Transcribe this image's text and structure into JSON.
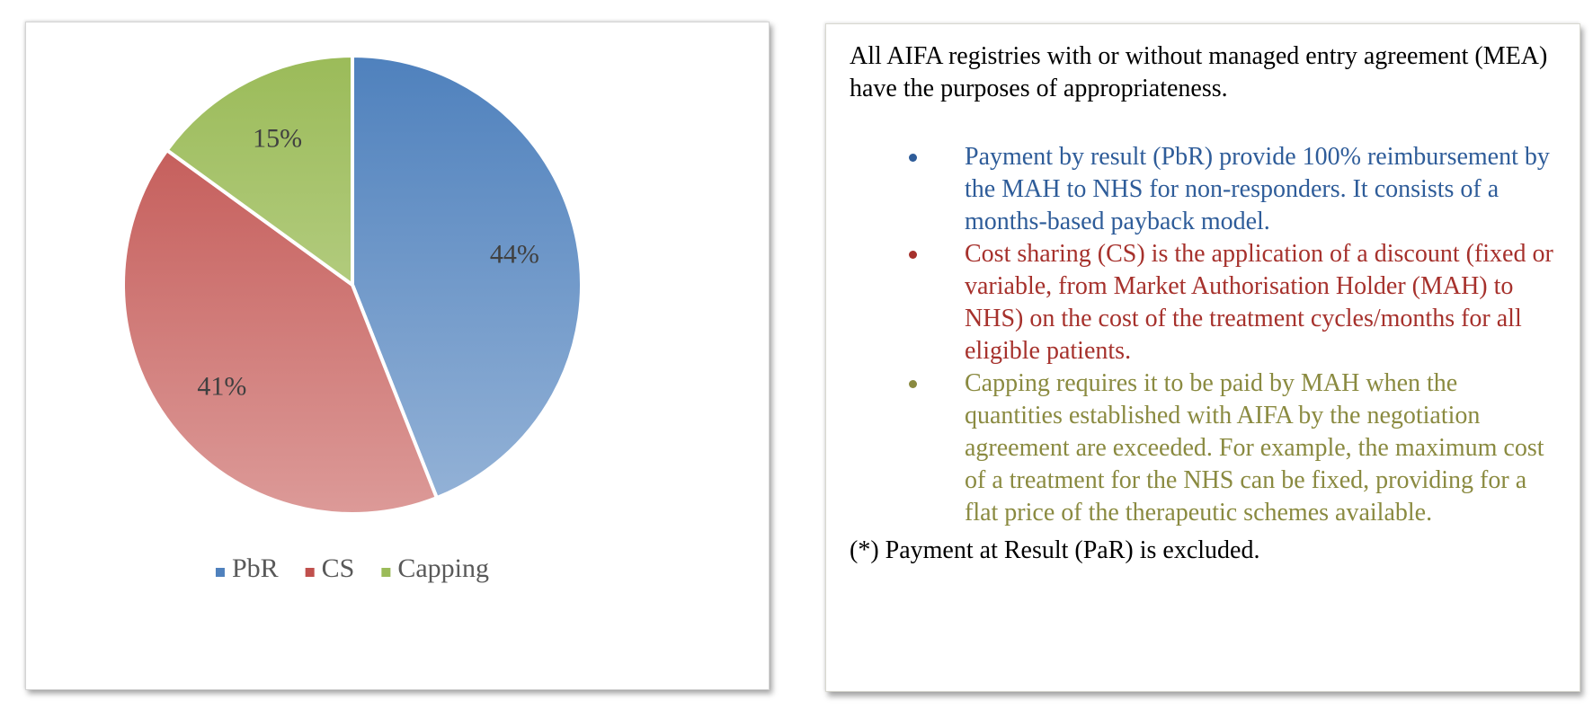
{
  "chart_data": {
    "type": "pie",
    "title": "",
    "slices": [
      {
        "label": "PbR",
        "value": 44,
        "data_label": "44%",
        "color": "#4f81bd",
        "color_light": "#95b3d7"
      },
      {
        "label": "CS",
        "value": 41,
        "data_label": "41%",
        "color": "#c0504d",
        "color_light": "#dc9a98"
      },
      {
        "label": "Capping",
        "value": 15,
        "data_label": "15%",
        "color": "#9bbb59",
        "color_light": "#c8dba1"
      }
    ],
    "legend": [
      "PbR",
      "CS",
      "Capping"
    ],
    "legend_position": "bottom",
    "start_angle": "12 o'clock",
    "direction": "clockwise"
  },
  "description": {
    "intro": "All AIFA registries with or without managed entry agreement (MEA) have the purposes of appropriateness.",
    "bullets": [
      {
        "text": "Payment by result (PbR) provide 100% reimbursement by the MAH to NHS for non-responders. It consists of a months-based payback model.",
        "color": "#2e5c99"
      },
      {
        "text": "Cost sharing (CS) is the application of a discount (fixed or variable, from Market Authorisation Holder (MAH) to NHS) on the cost of the treatment cycles/months for all eligible patients.",
        "color": "#a6312c"
      },
      {
        "text": "Capping requires it to be paid by MAH when the quantities established with AIFA by the negotiation agreement are exceeded. For example, the maximum cost of a treatment for the NHS can be fixed, providing for a flat price of the therapeutic schemes available.",
        "color": "#8a8a40"
      }
    ],
    "footnote": "(*) Payment at Result (PaR) is excluded."
  }
}
